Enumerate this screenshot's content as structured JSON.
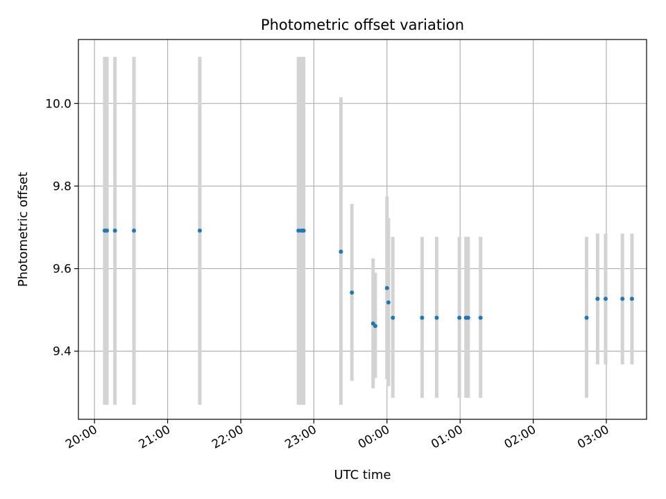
{
  "chart_data": {
    "type": "scatter",
    "title": "Photometric offset variation",
    "xlabel": "UTC time",
    "ylabel": "Photometric offset",
    "x_unit": "UTC time (elapsed hours from the 20:00 tick)",
    "xlim": [
      -0.22,
      7.55
    ],
    "ylim": [
      9.235,
      10.155
    ],
    "grid": true,
    "x_ticks": [
      {
        "value": 0,
        "label": "20:00"
      },
      {
        "value": 1,
        "label": "21:00"
      },
      {
        "value": 2,
        "label": "22:00"
      },
      {
        "value": 3,
        "label": "23:00"
      },
      {
        "value": 4,
        "label": "00:00"
      },
      {
        "value": 5,
        "label": "01:00"
      },
      {
        "value": 6,
        "label": "02:00"
      },
      {
        "value": 7,
        "label": "03:00"
      }
    ],
    "y_ticks": [
      {
        "value": 9.4,
        "label": "9.4"
      },
      {
        "value": 9.6,
        "label": "9.6"
      },
      {
        "value": 9.8,
        "label": "9.8"
      },
      {
        "value": 10.0,
        "label": "10.0"
      }
    ],
    "colors": {
      "point": "#1f77b4",
      "errorbar": "#d3d3d3",
      "grid": "#b0b0b0",
      "axes": "#000000"
    },
    "series": [
      {
        "points": [
          {
            "x": 0.14,
            "y": 9.692,
            "ylow": 9.27,
            "yhigh": 10.113
          },
          {
            "x": 0.17,
            "y": 9.692,
            "ylow": 9.27,
            "yhigh": 10.113
          },
          {
            "x": 0.28,
            "y": 9.692,
            "ylow": 9.27,
            "yhigh": 10.113
          },
          {
            "x": 0.54,
            "y": 9.692,
            "ylow": 9.27,
            "yhigh": 10.113
          },
          {
            "x": 1.44,
            "y": 9.692,
            "ylow": 9.27,
            "yhigh": 10.113
          },
          {
            "x": 2.79,
            "y": 9.692,
            "ylow": 9.27,
            "yhigh": 10.113
          },
          {
            "x": 2.83,
            "y": 9.692,
            "ylow": 9.27,
            "yhigh": 10.113
          },
          {
            "x": 2.86,
            "y": 9.692,
            "ylow": 9.27,
            "yhigh": 10.113
          },
          {
            "x": 3.37,
            "y": 9.641,
            "ylow": 9.27,
            "yhigh": 10.015
          },
          {
            "x": 3.52,
            "y": 9.542,
            "ylow": 9.328,
            "yhigh": 9.757
          },
          {
            "x": 3.81,
            "y": 9.467,
            "ylow": 9.31,
            "yhigh": 9.625
          },
          {
            "x": 3.84,
            "y": 9.461,
            "ylow": 9.335,
            "yhigh": 9.59
          },
          {
            "x": 4.0,
            "y": 9.553,
            "ylow": 9.332,
            "yhigh": 9.775
          },
          {
            "x": 4.02,
            "y": 9.518,
            "ylow": 9.315,
            "yhigh": 9.722
          },
          {
            "x": 4.08,
            "y": 9.481,
            "ylow": 9.287,
            "yhigh": 9.677
          },
          {
            "x": 4.48,
            "y": 9.481,
            "ylow": 9.287,
            "yhigh": 9.677
          },
          {
            "x": 4.68,
            "y": 9.481,
            "ylow": 9.287,
            "yhigh": 9.677
          },
          {
            "x": 4.99,
            "y": 9.481,
            "ylow": 9.287,
            "yhigh": 9.677
          },
          {
            "x": 5.08,
            "y": 9.481,
            "ylow": 9.287,
            "yhigh": 9.677
          },
          {
            "x": 5.11,
            "y": 9.481,
            "ylow": 9.287,
            "yhigh": 9.677
          },
          {
            "x": 5.28,
            "y": 9.481,
            "ylow": 9.287,
            "yhigh": 9.677
          },
          {
            "x": 6.73,
            "y": 9.481,
            "ylow": 9.287,
            "yhigh": 9.677
          },
          {
            "x": 6.88,
            "y": 9.527,
            "ylow": 9.368,
            "yhigh": 9.685
          },
          {
            "x": 6.99,
            "y": 9.527,
            "ylow": 9.368,
            "yhigh": 9.685
          },
          {
            "x": 7.22,
            "y": 9.527,
            "ylow": 9.368,
            "yhigh": 9.685
          },
          {
            "x": 7.35,
            "y": 9.527,
            "ylow": 9.368,
            "yhigh": 9.685
          }
        ]
      }
    ]
  }
}
